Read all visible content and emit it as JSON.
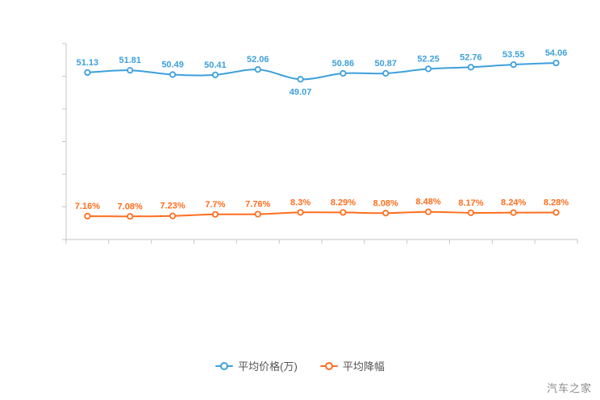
{
  "chart_data": {
    "type": "line",
    "x_count": 12,
    "categories": [
      "",
      "",
      "",
      "",
      "",
      "",
      "",
      "",
      "",
      "",
      "",
      ""
    ],
    "series": [
      {
        "name": "平均价格(万)",
        "color": "#3da0dc",
        "values": [
          51.13,
          51.81,
          50.49,
          50.41,
          52.06,
          49.07,
          50.86,
          50.87,
          52.25,
          52.76,
          53.55,
          54.06
        ],
        "labels": [
          "51.13",
          "51.81",
          "50.49",
          "50.41",
          "52.06",
          "49.07",
          "50.86",
          "50.87",
          "52.25",
          "52.76",
          "53.55",
          "54.06"
        ],
        "label_below_indices": [
          5
        ]
      },
      {
        "name": "平均降幅",
        "color": "#ff6e1e",
        "values": [
          7.16,
          7.08,
          7.23,
          7.7,
          7.76,
          8.3,
          8.29,
          8.08,
          8.48,
          8.17,
          8.24,
          8.28
        ],
        "labels": [
          "7.16%",
          "7.08%",
          "7.23%",
          "7.7%",
          "7.76%",
          "8.3%",
          "8.29%",
          "8.08%",
          "8.48%",
          "8.17%",
          "8.24%",
          "8.28%"
        ],
        "label_below_indices": []
      }
    ],
    "title": "",
    "xlabel": "",
    "ylabel": "",
    "ylim": [
      0,
      60
    ],
    "grid": false,
    "legend_position": "bottom",
    "axis_color": "#c4c4c4"
  },
  "watermark": "汽车之家"
}
